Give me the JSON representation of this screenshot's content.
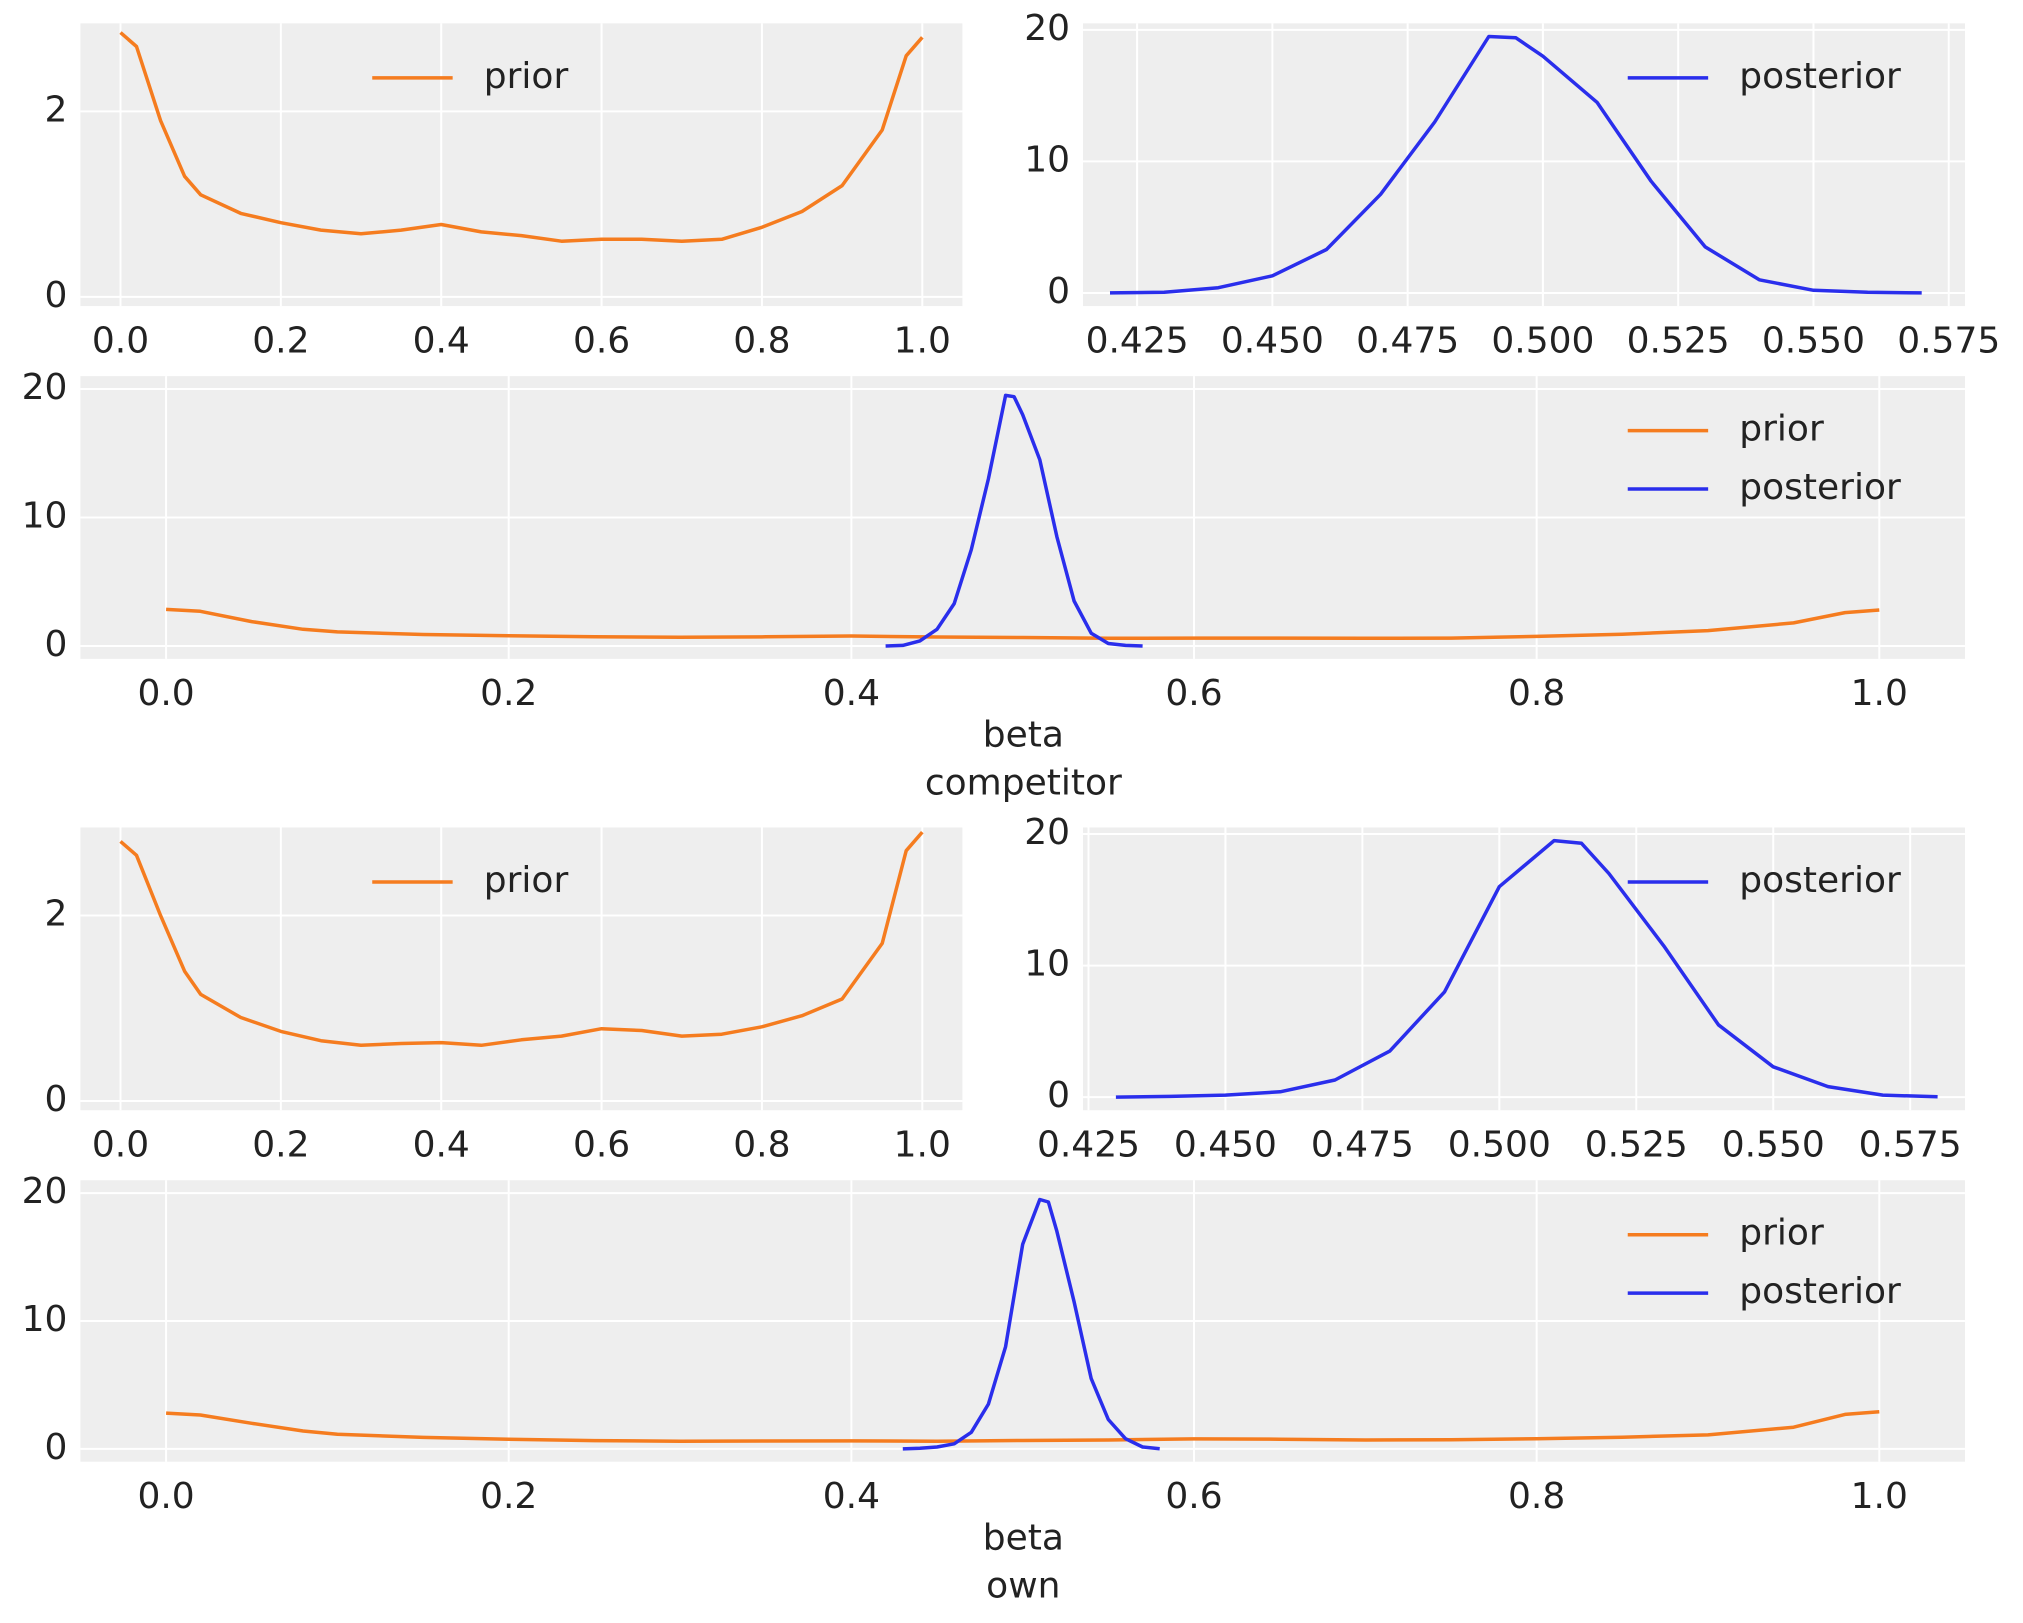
{
  "chart_data": [
    {
      "type": "line",
      "legend": "upper center",
      "grid": true,
      "xlim": [
        -0.05,
        1.05
      ],
      "ylim": [
        -0.1,
        2.95
      ],
      "xticks": [
        {
          "value": 0,
          "label": "0.0"
        },
        0.2,
        0.4,
        0.6,
        0.8,
        {
          "value": 1,
          "label": "1.0"
        }
      ],
      "yticks": [
        0,
        2
      ],
      "series": [
        {
          "name": "prior",
          "color": "#f57c1f",
          "x": [
            0,
            0.02,
            0.05,
            0.08,
            0.1,
            0.15,
            0.2,
            0.25,
            0.3,
            0.35,
            0.4,
            0.45,
            0.5,
            0.55,
            0.6,
            0.65,
            0.7,
            0.75,
            0.8,
            0.85,
            0.9,
            0.95,
            0.98,
            1.0
          ],
          "values": [
            2.85,
            2.7,
            1.9,
            1.3,
            1.1,
            0.9,
            0.8,
            0.72,
            0.68,
            0.72,
            0.78,
            0.7,
            0.66,
            0.6,
            0.62,
            0.62,
            0.6,
            0.62,
            0.75,
            0.92,
            1.2,
            1.8,
            2.6,
            2.8
          ]
        }
      ]
    },
    {
      "type": "line",
      "legend": "upper right",
      "grid": true,
      "xlim": [
        0.415,
        0.578
      ],
      "ylim": [
        -1,
        20.5
      ],
      "xticks": [
        0.425,
        {
          "value": 0.45,
          "label": "0.450"
        },
        0.475,
        {
          "value": 0.5,
          "label": "0.500"
        },
        0.525,
        {
          "value": 0.55,
          "label": "0.550"
        },
        0.575
      ],
      "yticks": [
        0,
        10,
        20
      ],
      "series": [
        {
          "name": "posterior",
          "color": "#2a2eec",
          "x": [
            0.42,
            0.43,
            0.44,
            0.45,
            0.46,
            0.47,
            0.48,
            0.49,
            0.495,
            0.5,
            0.51,
            0.52,
            0.53,
            0.54,
            0.55,
            0.56,
            0.57
          ],
          "values": [
            0,
            0.05,
            0.4,
            1.3,
            3.3,
            7.5,
            13,
            19.5,
            19.4,
            18,
            14.5,
            8.5,
            3.5,
            1.0,
            0.2,
            0.05,
            0
          ]
        }
      ]
    },
    {
      "type": "line",
      "legend": "upper right",
      "grid": true,
      "xlabel": [
        "beta",
        "competitor"
      ],
      "xlim": [
        -0.05,
        1.05
      ],
      "ylim": [
        -1,
        21
      ],
      "xticks": [
        {
          "value": 0,
          "label": "0.0"
        },
        0.2,
        0.4,
        0.6,
        0.8,
        {
          "value": 1,
          "label": "1.0"
        }
      ],
      "yticks": [
        0,
        10,
        20
      ],
      "series": [
        {
          "name": "prior",
          "color": "#f57c1f",
          "x": [
            0,
            0.02,
            0.05,
            0.08,
            0.1,
            0.15,
            0.2,
            0.25,
            0.3,
            0.35,
            0.4,
            0.45,
            0.5,
            0.55,
            0.6,
            0.65,
            0.7,
            0.75,
            0.8,
            0.85,
            0.9,
            0.95,
            0.98,
            1.0
          ],
          "values": [
            2.85,
            2.7,
            1.9,
            1.3,
            1.1,
            0.9,
            0.8,
            0.72,
            0.68,
            0.72,
            0.78,
            0.7,
            0.66,
            0.6,
            0.62,
            0.62,
            0.6,
            0.62,
            0.75,
            0.92,
            1.2,
            1.8,
            2.6,
            2.8
          ]
        },
        {
          "name": "posterior",
          "color": "#2a2eec",
          "x": [
            0.42,
            0.43,
            0.44,
            0.45,
            0.46,
            0.47,
            0.48,
            0.49,
            0.495,
            0.5,
            0.51,
            0.52,
            0.53,
            0.54,
            0.55,
            0.56,
            0.57
          ],
          "values": [
            0,
            0.05,
            0.4,
            1.3,
            3.3,
            7.5,
            13,
            19.5,
            19.4,
            18,
            14.5,
            8.5,
            3.5,
            1.0,
            0.2,
            0.05,
            0
          ]
        }
      ]
    },
    {
      "type": "line",
      "legend": "upper center",
      "grid": true,
      "xlim": [
        -0.05,
        1.05
      ],
      "ylim": [
        -0.1,
        2.95
      ],
      "xticks": [
        {
          "value": 0,
          "label": "0.0"
        },
        0.2,
        0.4,
        0.6,
        0.8,
        {
          "value": 1,
          "label": "1.0"
        }
      ],
      "yticks": [
        0,
        2
      ],
      "series": [
        {
          "name": "prior",
          "color": "#f57c1f",
          "x": [
            0,
            0.02,
            0.05,
            0.08,
            0.1,
            0.15,
            0.2,
            0.25,
            0.3,
            0.35,
            0.4,
            0.45,
            0.5,
            0.55,
            0.6,
            0.65,
            0.7,
            0.75,
            0.8,
            0.85,
            0.9,
            0.95,
            0.98,
            1.0
          ],
          "values": [
            2.8,
            2.65,
            2.0,
            1.4,
            1.15,
            0.9,
            0.75,
            0.65,
            0.6,
            0.62,
            0.63,
            0.6,
            0.66,
            0.7,
            0.78,
            0.76,
            0.7,
            0.72,
            0.8,
            0.92,
            1.1,
            1.7,
            2.7,
            2.9
          ]
        }
      ]
    },
    {
      "type": "line",
      "legend": "upper right",
      "grid": true,
      "xlim": [
        0.424,
        0.585
      ],
      "ylim": [
        -1,
        20.5
      ],
      "xticks": [
        0.425,
        {
          "value": 0.45,
          "label": "0.450"
        },
        0.475,
        {
          "value": 0.5,
          "label": "0.500"
        },
        0.525,
        {
          "value": 0.55,
          "label": "0.550"
        },
        0.575
      ],
      "yticks": [
        0,
        10,
        20
      ],
      "series": [
        {
          "name": "posterior",
          "color": "#2a2eec",
          "x": [
            0.43,
            0.44,
            0.45,
            0.46,
            0.47,
            0.48,
            0.49,
            0.5,
            0.51,
            0.515,
            0.52,
            0.53,
            0.54,
            0.55,
            0.56,
            0.57,
            0.58
          ],
          "values": [
            0,
            0.05,
            0.15,
            0.4,
            1.3,
            3.5,
            8,
            16,
            19.5,
            19.3,
            17,
            11.5,
            5.5,
            2.3,
            0.8,
            0.15,
            0.02
          ]
        }
      ]
    },
    {
      "type": "line",
      "legend": "upper right",
      "grid": true,
      "xlabel": [
        "beta",
        "own"
      ],
      "xlim": [
        -0.05,
        1.05
      ],
      "ylim": [
        -1,
        21
      ],
      "xticks": [
        {
          "value": 0,
          "label": "0.0"
        },
        0.2,
        0.4,
        0.6,
        0.8,
        {
          "value": 1,
          "label": "1.0"
        }
      ],
      "yticks": [
        0,
        10,
        20
      ],
      "series": [
        {
          "name": "prior",
          "color": "#f57c1f",
          "x": [
            0,
            0.02,
            0.05,
            0.08,
            0.1,
            0.15,
            0.2,
            0.25,
            0.3,
            0.35,
            0.4,
            0.45,
            0.5,
            0.55,
            0.6,
            0.65,
            0.7,
            0.75,
            0.8,
            0.85,
            0.9,
            0.95,
            0.98,
            1.0
          ],
          "values": [
            2.8,
            2.65,
            2.0,
            1.4,
            1.15,
            0.9,
            0.75,
            0.65,
            0.6,
            0.62,
            0.63,
            0.6,
            0.66,
            0.7,
            0.78,
            0.76,
            0.7,
            0.72,
            0.8,
            0.92,
            1.1,
            1.7,
            2.7,
            2.9
          ]
        },
        {
          "name": "posterior",
          "color": "#2a2eec",
          "x": [
            0.43,
            0.44,
            0.45,
            0.46,
            0.47,
            0.48,
            0.49,
            0.5,
            0.51,
            0.515,
            0.52,
            0.53,
            0.54,
            0.55,
            0.56,
            0.57,
            0.58
          ],
          "values": [
            0,
            0.05,
            0.15,
            0.4,
            1.3,
            3.5,
            8,
            16,
            19.5,
            19.3,
            17,
            11.5,
            5.5,
            2.3,
            0.8,
            0.15,
            0.02
          ]
        }
      ]
    }
  ]
}
